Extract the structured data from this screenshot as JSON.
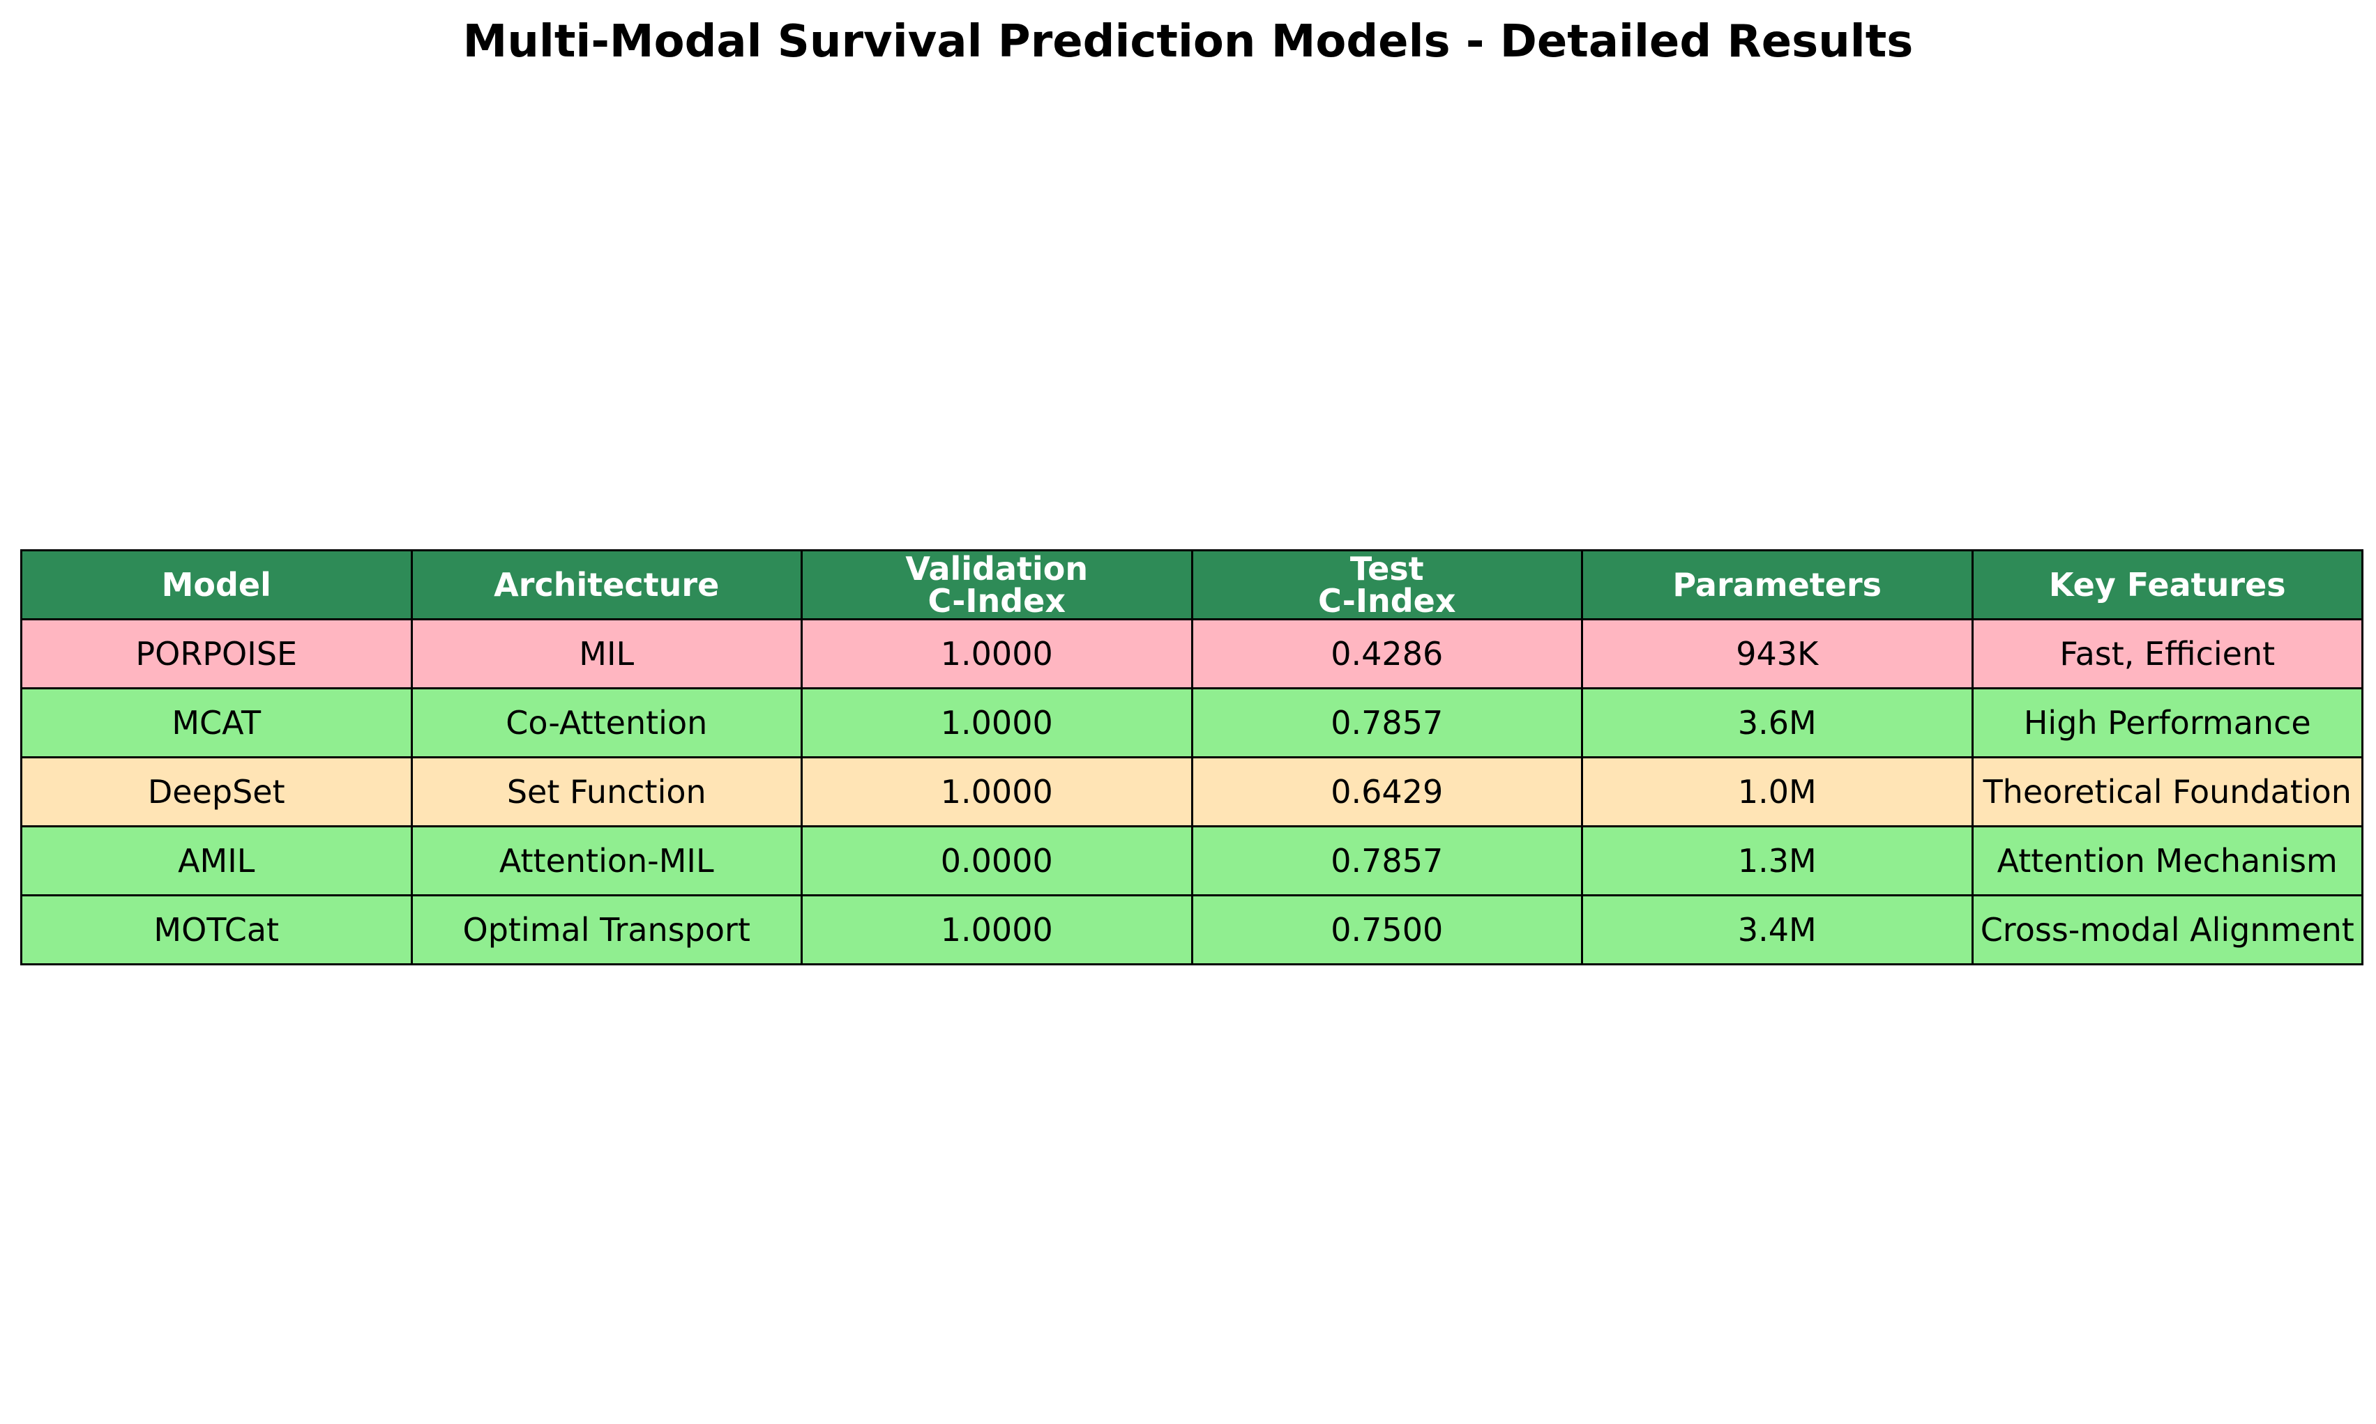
{
  "chart_data": {
    "type": "table",
    "title": "Multi-Modal Survival Prediction Models - Detailed Results",
    "header_color": "#2e8b57",
    "columns": [
      {
        "key": "model",
        "lines": [
          "Model"
        ]
      },
      {
        "key": "architecture",
        "lines": [
          "Architecture"
        ]
      },
      {
        "key": "validation_cindex",
        "lines": [
          "Validation",
          "C-Index"
        ]
      },
      {
        "key": "test_cindex",
        "lines": [
          "Test",
          "C-Index"
        ]
      },
      {
        "key": "parameters",
        "lines": [
          "Parameters"
        ]
      },
      {
        "key": "key_features",
        "lines": [
          "Key Features"
        ]
      }
    ],
    "rows": [
      {
        "color": "#ffb6c1",
        "cells": [
          "PORPOISE",
          "MIL",
          "1.0000",
          "0.4286",
          "943K",
          "Fast, Efficient"
        ]
      },
      {
        "color": "#90ee90",
        "cells": [
          "MCAT",
          "Co-Attention",
          "1.0000",
          "0.7857",
          "3.6M",
          "High Performance"
        ]
      },
      {
        "color": "#ffe4b5",
        "cells": [
          "DeepSet",
          "Set Function",
          "1.0000",
          "0.6429",
          "1.0M",
          "Theoretical Foundation"
        ]
      },
      {
        "color": "#90ee90",
        "cells": [
          "AMIL",
          "Attention-MIL",
          "0.0000",
          "0.7857",
          "1.3M",
          "Attention Mechanism"
        ]
      },
      {
        "color": "#90ee90",
        "cells": [
          "MOTCat",
          "Optimal Transport",
          "1.0000",
          "0.7500",
          "3.4M",
          "Cross-modal Alignment"
        ]
      }
    ]
  }
}
